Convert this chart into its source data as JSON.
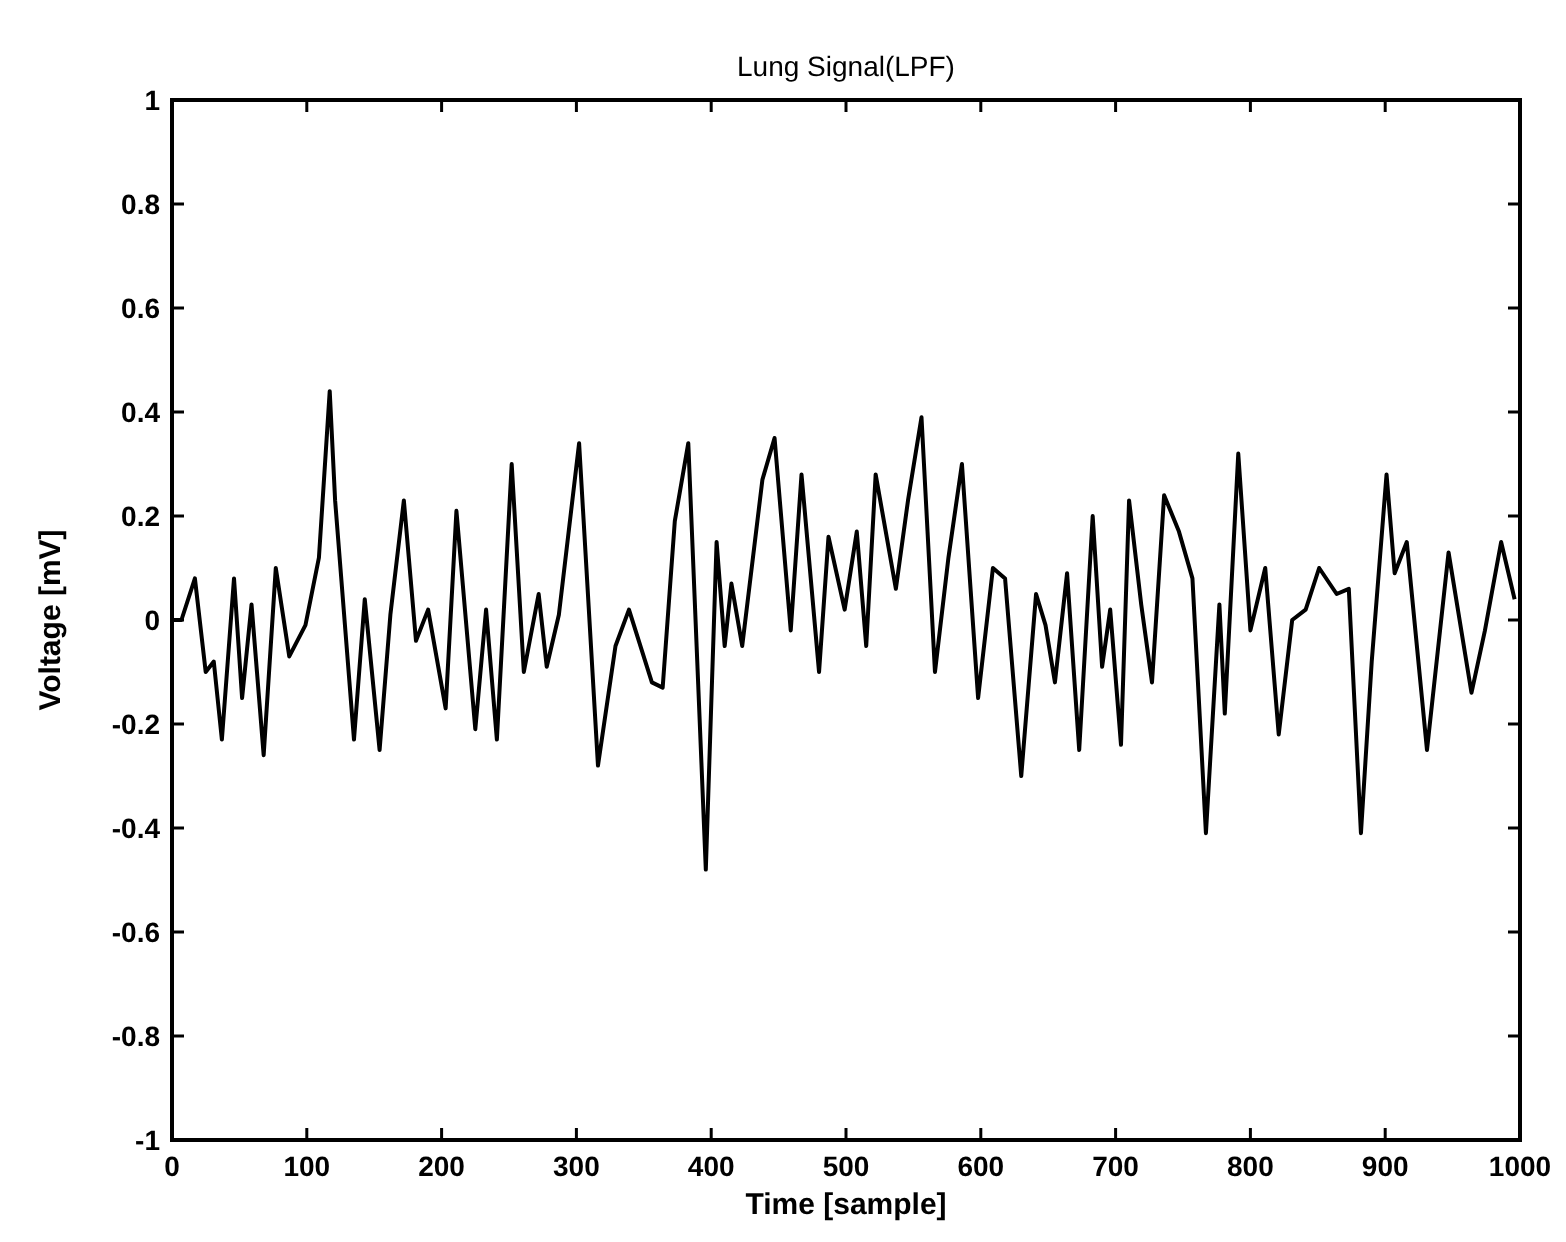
{
  "chart_data": {
    "type": "line",
    "title": "Lung Signal(LPF)",
    "xlabel": "Time [sample]",
    "ylabel": "Voltage [mV]",
    "xlim": [
      0,
      1000
    ],
    "xticks": [
      0,
      100,
      200,
      300,
      400,
      500,
      600,
      700,
      800,
      900,
      1000
    ],
    "ylim": [
      -1,
      1
    ],
    "yticks": [
      -1,
      -0.8,
      -0.6,
      -0.4,
      -0.2,
      0,
      0.2,
      0.4,
      0.6,
      0.8,
      1
    ],
    "grid": false,
    "line_style": "solid",
    "series": [
      {
        "color": "#000000",
        "x": [
          0,
          7,
          17,
          25,
          31,
          37,
          46,
          52,
          59,
          68,
          77,
          87,
          99,
          109,
          117,
          121,
          135,
          143,
          154,
          162,
          172,
          181,
          190,
          203,
          211,
          225,
          233,
          241,
          252,
          261,
          272,
          278,
          287,
          302,
          316,
          329,
          339,
          356,
          364,
          373,
          383,
          396,
          404,
          410,
          415,
          423,
          438,
          447,
          459,
          467,
          480,
          487,
          499,
          508,
          515,
          522,
          537,
          546,
          556,
          566,
          576,
          586,
          598,
          609,
          618,
          630,
          641,
          648,
          655,
          664,
          673,
          683,
          690,
          696,
          704,
          710,
          719,
          727,
          736,
          747,
          757,
          767,
          777,
          781,
          791,
          800,
          811,
          821,
          831,
          841,
          851,
          864,
          873,
          882,
          890,
          901,
          907,
          916,
          931,
          947,
          964,
          974,
          986,
          996
        ],
        "values": [
          0,
          0,
          0.08,
          -0.1,
          -0.08,
          -0.23,
          0.08,
          -0.15,
          0.03,
          -0.26,
          0.1,
          -0.07,
          -0.01,
          0.12,
          0.44,
          0.23,
          -0.23,
          0.04,
          -0.25,
          0.01,
          0.23,
          -0.04,
          0.02,
          -0.17,
          0.21,
          -0.21,
          0.02,
          -0.23,
          0.3,
          -0.1,
          0.05,
          -0.09,
          0.01,
          0.34,
          -0.28,
          -0.05,
          0.02,
          -0.12,
          -0.13,
          0.19,
          0.34,
          -0.48,
          0.15,
          -0.05,
          0.07,
          -0.05,
          0.27,
          0.35,
          -0.02,
          0.28,
          -0.1,
          0.16,
          0.02,
          0.17,
          -0.05,
          0.28,
          0.06,
          0.23,
          0.39,
          -0.1,
          0.12,
          0.3,
          -0.15,
          0.1,
          0.08,
          -0.3,
          0.05,
          -0.01,
          -0.12,
          0.09,
          -0.25,
          0.2,
          -0.09,
          0.02,
          -0.24,
          0.23,
          0.03,
          -0.12,
          0.24,
          0.17,
          0.08,
          -0.41,
          0.03,
          -0.18,
          0.32,
          -0.02,
          0.1,
          -0.22,
          0,
          0.02,
          0.1,
          0.05,
          0.06,
          -0.41,
          -0.08,
          0.28,
          0.09,
          0.15,
          -0.25,
          0.13,
          -0.14,
          -0.02,
          0.15,
          0.04
        ]
      }
    ]
  }
}
